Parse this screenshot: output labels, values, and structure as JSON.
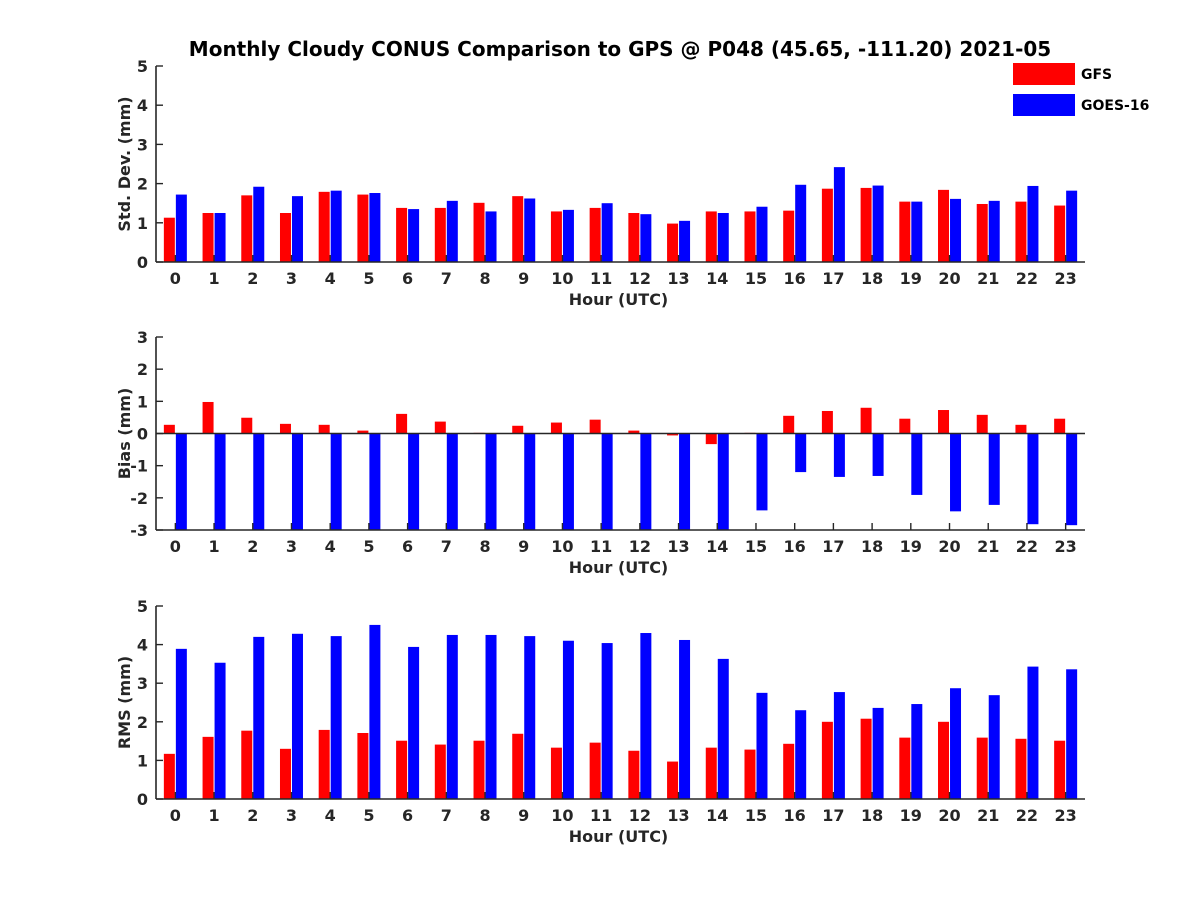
{
  "chart_data": {
    "type": "bar",
    "title": "Monthly Cloudy CONUS Comparison to GPS @ P048 (45.65, -111.20) 2021-05",
    "legend": {
      "placement": "top-right",
      "entries": [
        {
          "name": "GFS",
          "color": "#ff0000"
        },
        {
          "name": "GOES-16",
          "color": "#0000ff"
        }
      ]
    },
    "categories": [
      "0",
      "1",
      "2",
      "3",
      "4",
      "5",
      "6",
      "7",
      "8",
      "9",
      "10",
      "11",
      "12",
      "13",
      "14",
      "15",
      "16",
      "17",
      "18",
      "19",
      "20",
      "21",
      "22",
      "23"
    ],
    "panels": [
      {
        "id": "std",
        "xlabel": "Hour (UTC)",
        "ylabel": "Std. Dev. (mm)",
        "ylim": [
          0,
          5
        ],
        "yticks": [
          "0",
          "1",
          "2",
          "3",
          "4",
          "5"
        ],
        "series": [
          {
            "name": "GFS",
            "color": "#ff0000",
            "values": [
              1.13,
              1.25,
              1.7,
              1.25,
              1.79,
              1.72,
              1.38,
              1.38,
              1.51,
              1.68,
              1.29,
              1.38,
              1.25,
              0.98,
              1.29,
              1.29,
              1.31,
              1.87,
              1.89,
              1.54,
              1.84,
              1.48,
              1.54,
              1.44
            ]
          },
          {
            "name": "GOES-16",
            "color": "#0000ff",
            "values": [
              1.72,
              1.25,
              1.92,
              1.68,
              1.82,
              1.76,
              1.35,
              1.56,
              1.29,
              1.62,
              1.33,
              1.5,
              1.22,
              1.05,
              1.25,
              1.41,
              1.97,
              2.42,
              1.95,
              1.54,
              1.61,
              1.56,
              1.94,
              1.82
            ]
          }
        ]
      },
      {
        "id": "bias",
        "xlabel": "Hour (UTC)",
        "ylabel": "Bias (mm)",
        "ylim": [
          -3,
          3
        ],
        "yticks": [
          "-3",
          "-2",
          "-1",
          "0",
          "1",
          "2",
          "3"
        ],
        "zero_line": true,
        "series": [
          {
            "name": "GFS",
            "color": "#ff0000",
            "values": [
              0.27,
              0.98,
              0.49,
              0.3,
              0.27,
              0.09,
              0.61,
              0.37,
              0.02,
              0.24,
              0.34,
              0.43,
              0.09,
              -0.06,
              -0.33,
              0.02,
              0.55,
              0.7,
              0.8,
              0.46,
              0.73,
              0.58,
              0.27,
              0.46
            ]
          },
          {
            "name": "GOES-16",
            "color": "#0000ff",
            "values": [
              -3,
              -3,
              -3,
              -3,
              -3,
              -3,
              -3,
              -3,
              -3,
              -3,
              -3,
              -3,
              -3,
              -3,
              -3,
              -2.39,
              -1.2,
              -1.35,
              -1.32,
              -1.91,
              -2.42,
              -2.22,
              -2.82,
              -2.85
            ]
          }
        ]
      },
      {
        "id": "rms",
        "xlabel": "Hour (UTC)",
        "ylabel": "RMS (mm)",
        "ylim": [
          0,
          5
        ],
        "yticks": [
          "0",
          "1",
          "2",
          "3",
          "4",
          "5"
        ],
        "series": [
          {
            "name": "GFS",
            "color": "#ff0000",
            "values": [
              1.17,
              1.61,
              1.77,
              1.3,
              1.79,
              1.71,
              1.51,
              1.41,
              1.51,
              1.69,
              1.33,
              1.46,
              1.25,
              0.97,
              1.33,
              1.28,
              1.43,
              2.0,
              2.08,
              1.59,
              2.0,
              1.59,
              1.56,
              1.51
            ]
          },
          {
            "name": "GOES-16",
            "color": "#0000ff",
            "values": [
              3.89,
              3.53,
              4.2,
              4.28,
              4.22,
              4.51,
              3.94,
              4.25,
              4.25,
              4.22,
              4.1,
              4.04,
              4.3,
              4.12,
              3.63,
              2.75,
              2.3,
              2.77,
              2.36,
              2.46,
              2.87,
              2.69,
              3.43,
              3.36
            ]
          }
        ]
      }
    ]
  }
}
